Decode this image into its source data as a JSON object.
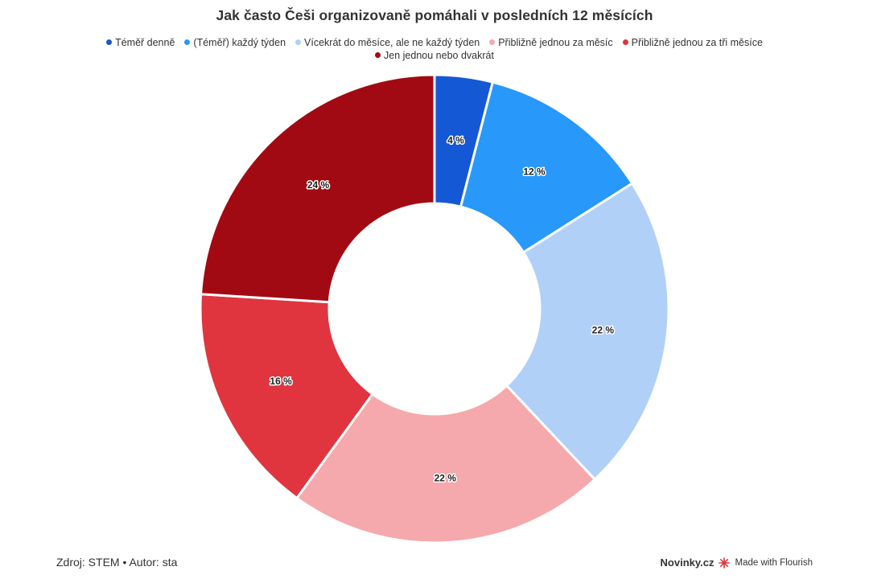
{
  "chart_data": {
    "type": "pie",
    "title": "Jak často Češi organizovaně pomáhali v posledních 12 měsících",
    "donut": true,
    "categories": [
      "Téměř denně",
      "(Téměř) každý týden",
      "Vícekrát do měsíce, ale ne každý týden",
      "Přibližně jednou za měsíc",
      "Přibližně jednou za tři měsíce",
      "Jen jednou nebo dvakrát"
    ],
    "values": [
      4,
      12,
      22,
      22,
      16,
      24
    ],
    "data_labels": [
      "4 %",
      "12 %",
      "22 %",
      "22 %",
      "16 %",
      "24 %"
    ],
    "colors": [
      "#1558d6",
      "#2898fa",
      "#b0d0f8",
      "#f5a9ac",
      "#e0353f",
      "#a20a13"
    ],
    "legend_position": "top"
  },
  "footer": {
    "source": "Zdroj: STEM • Autor: sta",
    "brand": "Novinky.cz",
    "made_with": "Made with Flourish"
  }
}
